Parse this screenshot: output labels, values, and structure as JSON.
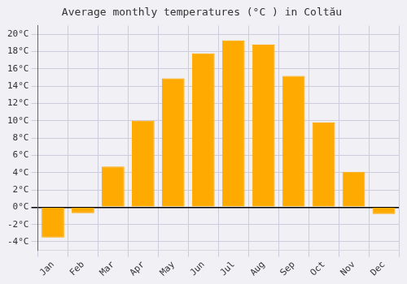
{
  "chart_data": {
    "type": "bar",
    "title": "Average monthly temperatures (°C ) in Coltău",
    "categories": [
      "Jan",
      "Feb",
      "Mar",
      "Apr",
      "May",
      "Jun",
      "Jul",
      "Aug",
      "Sep",
      "Oct",
      "Nov",
      "Dec"
    ],
    "values": [
      -3.5,
      -0.7,
      4.7,
      10.0,
      14.9,
      17.8,
      19.3,
      18.8,
      15.2,
      9.8,
      4.1,
      -0.8
    ],
    "color": "#FFAA00",
    "ylim": [
      -5,
      21
    ],
    "yticks": [
      {
        "value": -4,
        "label": "-4°C"
      },
      {
        "value": -2,
        "label": "-2°C"
      },
      {
        "value": 0,
        "label": "0°C"
      },
      {
        "value": 2,
        "label": "2°C"
      },
      {
        "value": 4,
        "label": "4°C"
      },
      {
        "value": 6,
        "label": "6°C"
      },
      {
        "value": 8,
        "label": "8°C"
      },
      {
        "value": 10,
        "label": "10°C"
      },
      {
        "value": 12,
        "label": "12°C"
      },
      {
        "value": 14,
        "label": "14°C"
      },
      {
        "value": 16,
        "label": "16°C"
      },
      {
        "value": 18,
        "label": "18°C"
      },
      {
        "value": 20,
        "label": "20°C"
      }
    ],
    "grid": true
  }
}
